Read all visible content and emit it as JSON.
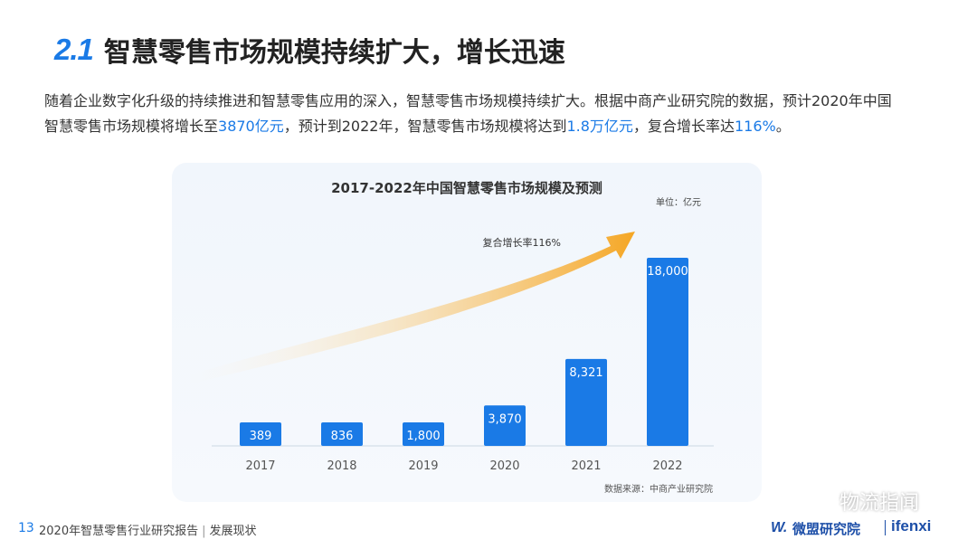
{
  "slide": {
    "section_number": "2.1",
    "title": "智慧零售市场规模持续扩大，增长迅速",
    "intro_line1": "随着企业数字化升级的持续推进和智慧零售应用的深入，智慧零售市场规模持续扩大。根据中商产业研究院的数据，预计2020年中国",
    "intro_line2_a": "智慧零售市场规模将增长至",
    "intro_line2_highlight1": "3870亿元",
    "intro_line2_b": "，预计到2022年，智慧零售市场规模将达到",
    "intro_line2_highlight2": "1.8万亿元",
    "intro_line2_c": "，复合增长率达",
    "intro_line2_highlight3": "116%",
    "intro_line2_d": "。"
  },
  "footer": {
    "page_number": "13",
    "report_name": "2020年智慧零售行业研究报告",
    "separator": "|",
    "section": "发展现状",
    "logo_mark": "W.",
    "logo_cn": "微盟研究院",
    "logo_en": "ifenxi"
  },
  "watermark": {
    "text": "物流指闻",
    "icon": "wechat-icon"
  },
  "colors": {
    "accent": "#1a7ae6",
    "bar": "#1a7ae6",
    "arrow_start": "#fef3de",
    "arrow_end": "#f5a623"
  },
  "chart_data": {
    "type": "bar",
    "title": "2017-2022年中国智慧零售市场规模及预测",
    "unit_label": "单位：亿元",
    "categories": [
      "2017",
      "2018",
      "2019",
      "2020",
      "2021",
      "2022"
    ],
    "values": [
      389,
      836,
      1800,
      3870,
      8321,
      18000
    ],
    "value_labels": [
      "389",
      "836",
      "1,800",
      "3,870",
      "8,321",
      "18,000"
    ],
    "annotation": "复合增长率116%",
    "source": "数据来源：中商产业研究院",
    "grid": false,
    "legend": "none"
  }
}
